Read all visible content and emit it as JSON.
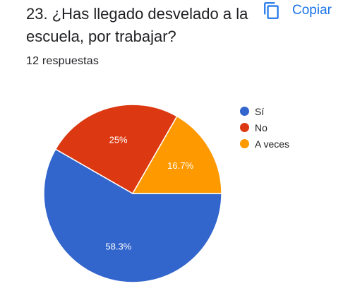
{
  "question": {
    "title": "23. ¿Has llegado desvelado a la escuela, por trabajar?",
    "responses_text": "12 respuestas"
  },
  "toolbar": {
    "copy_label": "Copiar",
    "copy_icon": "copy-icon"
  },
  "colors": {
    "accent": "#1a73e8",
    "si": "#3366cc",
    "no": "#dc3912",
    "a_veces": "#ff9900"
  },
  "chart_data": {
    "type": "pie",
    "categories": [
      "Sí",
      "No",
      "A veces"
    ],
    "values": [
      58.3,
      25,
      16.7
    ],
    "labels": [
      "58.3%",
      "25%",
      "16.7%"
    ],
    "colors": [
      "#3366cc",
      "#dc3912",
      "#ff9900"
    ],
    "legend": "right"
  }
}
